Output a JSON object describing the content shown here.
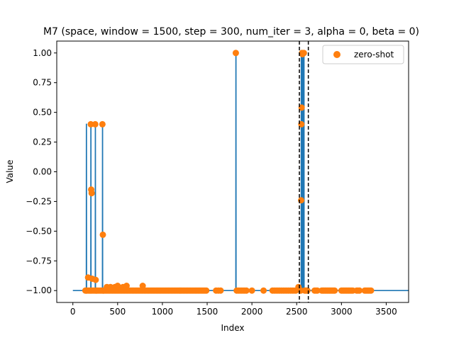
{
  "chart_data": {
    "type": "line",
    "title": "M7 (space, window = 1500, step = 300, num_iter = 3, alpha = 0, beta = 0)",
    "xlabel": "Index",
    "ylabel": "Value",
    "xlim": [
      -180,
      3750
    ],
    "ylim": [
      -1.1,
      1.1
    ],
    "xticks": [
      0,
      500,
      1000,
      1500,
      2000,
      2500,
      3000,
      3500
    ],
    "yticks": [
      -1.0,
      -0.75,
      -0.5,
      -0.25,
      0.0,
      0.25,
      0.5,
      0.75,
      1.0
    ],
    "ytick_labels": [
      "−1.00",
      "−0.75",
      "−0.50",
      "−0.25",
      "0.00",
      "0.25",
      "0.50",
      "0.75",
      "1.00"
    ],
    "grid": false,
    "legend": {
      "placement": "top-right",
      "entries": [
        "zero-shot"
      ]
    },
    "vlines": [
      2530,
      2630
    ],
    "series": [
      {
        "kind": "line",
        "color": "#1f77b4",
        "x": [
          0,
          150,
          151,
          152,
          153,
          200,
          201,
          202,
          203,
          250,
          251,
          252,
          253,
          330,
          331,
          332,
          333,
          400,
          600,
          601,
          602,
          780,
          781,
          782,
          1820,
          1821,
          1822,
          1823,
          2550,
          2551,
          2552,
          2553,
          2560,
          2561,
          2562,
          2563,
          2570,
          2571,
          2572,
          2573,
          2580,
          2581,
          2582,
          2583,
          3750
        ],
        "y": [
          -1,
          -1,
          0.4,
          0.4,
          -1,
          -1,
          0.4,
          0.4,
          -1,
          -1,
          0.4,
          0.4,
          -1,
          -1,
          0.4,
          0.4,
          -1,
          -1,
          -1,
          -0.96,
          -1,
          -1,
          -0.96,
          -1,
          -1,
          1.0,
          1.0,
          -1,
          -1,
          1.0,
          1.0,
          -1,
          -1,
          1.0,
          1.0,
          -1,
          -1,
          1.0,
          1.0,
          -1,
          -1,
          1.0,
          1.0,
          -1,
          -1
        ]
      },
      {
        "kind": "scatter",
        "name": "zero-shot",
        "color": "#ff7f0e",
        "x": [
          150,
          170,
          200,
          205,
          210,
          215,
          250,
          255,
          260,
          330,
          335,
          340,
          380,
          420,
          470,
          500,
          560,
          600,
          780,
          1820,
          2520,
          2545,
          2550,
          2552,
          2555,
          2560,
          2565,
          2580,
          2590
        ],
        "y": [
          -1,
          -0.89,
          0.4,
          -0.15,
          -0.18,
          -0.9,
          0.4,
          -0.91,
          -1,
          0.4,
          -0.53,
          -1,
          -0.97,
          -0.97,
          -0.97,
          -0.96,
          -0.97,
          -0.96,
          -0.96,
          1.0,
          -0.97,
          -1,
          -0.24,
          0.4,
          0.54,
          1.0,
          0.99,
          1.0,
          -1
        ],
        "dense_ranges": [
          {
            "from": 140,
            "to": 1500,
            "step": 15,
            "value": -1
          },
          {
            "from": 1600,
            "to": 1650,
            "step": 25,
            "value": -1
          },
          {
            "from": 1830,
            "to": 1940,
            "step": 18,
            "value": -1
          },
          {
            "from": 2000,
            "to": 2000,
            "step": 1,
            "value": -1
          },
          {
            "from": 2130,
            "to": 2130,
            "step": 1,
            "value": -1
          },
          {
            "from": 2230,
            "to": 2500,
            "step": 20,
            "value": -1
          },
          {
            "from": 2600,
            "to": 2620,
            "step": 10,
            "value": -1
          },
          {
            "from": 2700,
            "to": 2730,
            "step": 15,
            "value": -1
          },
          {
            "from": 2780,
            "to": 2930,
            "step": 12,
            "value": -1
          },
          {
            "from": 3000,
            "to": 3130,
            "step": 14,
            "value": -1
          },
          {
            "from": 3170,
            "to": 3200,
            "step": 15,
            "value": -1
          },
          {
            "from": 3260,
            "to": 3340,
            "step": 14,
            "value": -1
          }
        ]
      }
    ]
  }
}
